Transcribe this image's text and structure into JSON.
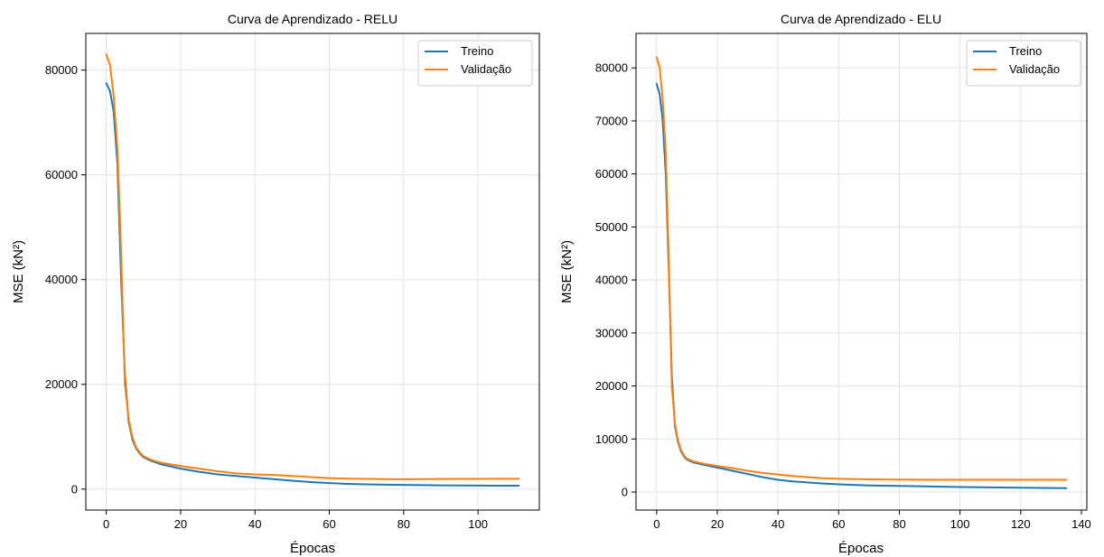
{
  "chart_data": [
    {
      "type": "line",
      "title": "Curva de Aprendizado - RELU",
      "xlabel": "Épocas",
      "ylabel": "MSE (kN²)",
      "xlim": [
        -5.5,
        116.5
      ],
      "ylim": [
        -4000,
        87000
      ],
      "xticks": [
        0,
        20,
        40,
        60,
        80,
        100
      ],
      "yticks": [
        0,
        20000,
        40000,
        60000,
        80000
      ],
      "grid": true,
      "legend_position": "top-right",
      "series": [
        {
          "name": "Treino",
          "color": "#1f77b4",
          "x": [
            0,
            1,
            2,
            3,
            4,
            5,
            6,
            7,
            8,
            9,
            10,
            12,
            15,
            20,
            25,
            30,
            35,
            40,
            45,
            50,
            55,
            60,
            65,
            70,
            75,
            80,
            85,
            90,
            95,
            100,
            105,
            111
          ],
          "y": [
            77500,
            76000,
            72000,
            62000,
            40000,
            22000,
            13000,
            9500,
            7800,
            6800,
            6100,
            5400,
            4700,
            3900,
            3300,
            2800,
            2500,
            2200,
            1900,
            1600,
            1350,
            1150,
            1000,
            920,
            850,
            800,
            760,
            720,
            700,
            680,
            660,
            650
          ]
        },
        {
          "name": "Validação",
          "color": "#ff7f0e",
          "x": [
            0,
            1,
            2,
            3,
            4,
            5,
            6,
            7,
            8,
            9,
            10,
            12,
            15,
            20,
            25,
            30,
            35,
            40,
            45,
            50,
            55,
            60,
            65,
            70,
            75,
            80,
            85,
            90,
            95,
            100,
            105,
            111
          ],
          "y": [
            83000,
            81000,
            75000,
            65000,
            45000,
            20000,
            13500,
            10000,
            8000,
            7000,
            6300,
            5600,
            5000,
            4400,
            3900,
            3400,
            3000,
            2800,
            2700,
            2500,
            2300,
            2100,
            2000,
            1950,
            1900,
            1880,
            1900,
            1920,
            1950,
            1950,
            1960,
            1960
          ]
        }
      ]
    },
    {
      "type": "line",
      "title": "Curva de Aprendizado - ELU",
      "xlabel": "Épocas",
      "ylabel": "MSE (kN²)",
      "xlim": [
        -6.8,
        141.8
      ],
      "ylim": [
        -3400,
        86500
      ],
      "xticks": [
        0,
        20,
        40,
        60,
        80,
        100,
        120,
        140
      ],
      "yticks": [
        0,
        10000,
        20000,
        30000,
        40000,
        50000,
        60000,
        70000,
        80000
      ],
      "grid": true,
      "legend_position": "top-right",
      "series": [
        {
          "name": "Treino",
          "color": "#1f77b4",
          "x": [
            0,
            1,
            2,
            3,
            4,
            5,
            6,
            7,
            8,
            9,
            10,
            12,
            15,
            20,
            25,
            30,
            35,
            40,
            45,
            50,
            55,
            60,
            70,
            80,
            90,
            100,
            110,
            120,
            130,
            135
          ],
          "y": [
            77000,
            75000,
            70000,
            60000,
            42000,
            22000,
            12500,
            9500,
            7700,
            6700,
            6100,
            5600,
            5200,
            4600,
            4000,
            3400,
            2800,
            2300,
            2000,
            1800,
            1600,
            1450,
            1250,
            1150,
            1050,
            950,
            880,
            820,
            760,
            730
          ]
        },
        {
          "name": "Validação",
          "color": "#ff7f0e",
          "x": [
            0,
            1,
            2,
            3,
            4,
            5,
            6,
            7,
            8,
            9,
            10,
            12,
            15,
            20,
            25,
            30,
            35,
            40,
            45,
            50,
            55,
            60,
            70,
            80,
            90,
            100,
            110,
            120,
            130,
            135
          ],
          "y": [
            82000,
            80000,
            74000,
            64000,
            44000,
            20000,
            13000,
            9800,
            8000,
            6900,
            6300,
            5800,
            5400,
            4900,
            4500,
            4000,
            3600,
            3300,
            3000,
            2800,
            2600,
            2500,
            2400,
            2350,
            2300,
            2300,
            2300,
            2300,
            2300,
            2300
          ]
        }
      ]
    }
  ]
}
